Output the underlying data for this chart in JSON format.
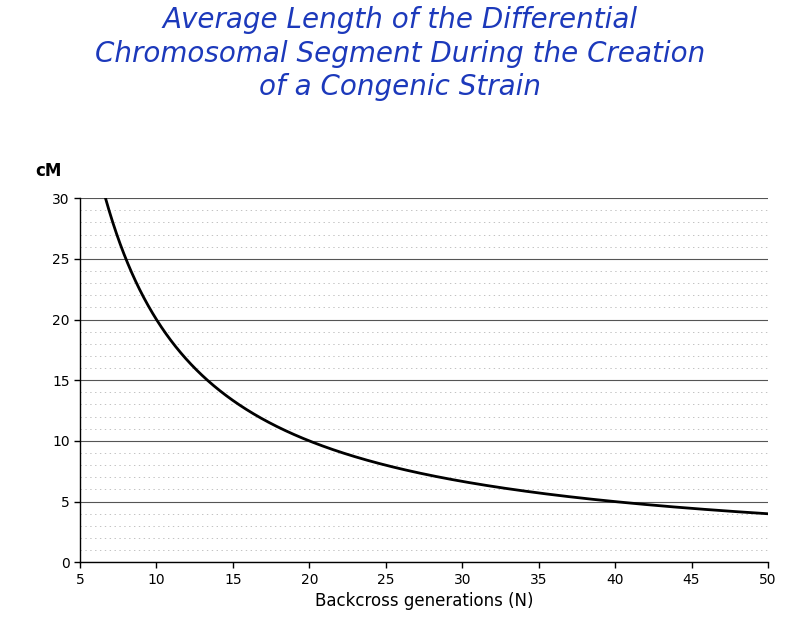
{
  "title_line1": "Average Length of the Differential",
  "title_line2": "Chromosomal Segment During the Creation",
  "title_line3": "of a Congenic Strain",
  "title_color": "#1c39bb",
  "title_fontsize": 20,
  "title_font": "Comic Sans MS",
  "xlabel": "Backcross generations (N)",
  "ylabel": "cM",
  "xlabel_fontsize": 12,
  "ylabel_fontsize": 12,
  "tick_fontsize": 10,
  "x_min": 5,
  "x_max": 50,
  "y_min": 0,
  "y_max": 30,
  "x_ticks": [
    5,
    10,
    15,
    20,
    25,
    30,
    35,
    40,
    45,
    50
  ],
  "y_ticks": [
    0,
    5,
    10,
    15,
    20,
    25,
    30
  ],
  "curve_color": "#000000",
  "curve_linewidth": 2.0,
  "background_color": "#ffffff",
  "major_grid_color": "#555555",
  "minor_grid_color": "#aaaaaa",
  "major_grid_linewidth": 0.8,
  "minor_grid_linewidth": 0.5
}
